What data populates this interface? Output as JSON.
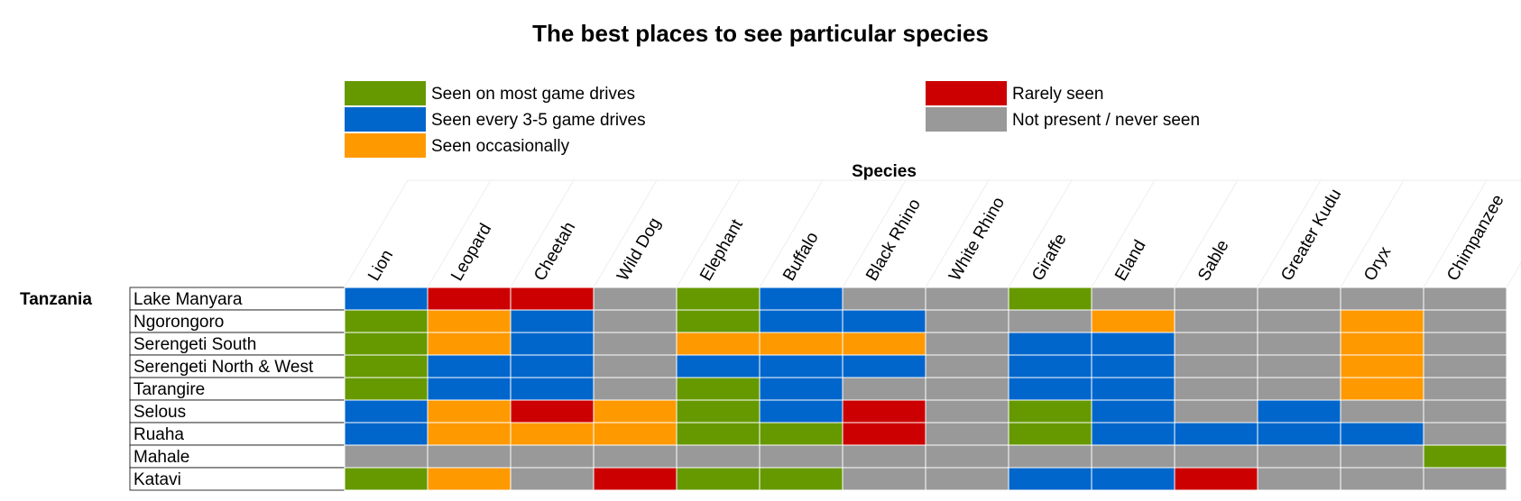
{
  "chart_data": {
    "type": "heatmap",
    "title": "The best places to see particular species",
    "xlabel": "Species",
    "group_label": "Tanzania",
    "categories": [
      "Lion",
      "Leopard",
      "Cheetah",
      "Wild Dog",
      "Elephant",
      "Buffalo",
      "Black Rhino",
      "White Rhino",
      "Giraffe",
      "Eland",
      "Sable",
      "Greater Kudu",
      "Oryx",
      "Chimpanzee"
    ],
    "rows": [
      "Lake Manyara",
      "Ngorongoro",
      "Serengeti South",
      "Serengeti North & West",
      "Tarangire",
      "Selous",
      "Ruaha",
      "Mahale",
      "Katavi"
    ],
    "legend": [
      {
        "key": "most",
        "label": "Seen on most game drives",
        "color": "#669900"
      },
      {
        "key": "every",
        "label": "Seen every 3-5 game drives",
        "color": "#0066cc"
      },
      {
        "key": "occasional",
        "label": "Seen occasionally",
        "color": "#ff9900"
      },
      {
        "key": "rare",
        "label": "Rarely seen",
        "color": "#cc0000"
      },
      {
        "key": "none",
        "label": "Not present / never seen",
        "color": "#999999"
      }
    ],
    "values": [
      [
        "every",
        "rare",
        "rare",
        "none",
        "most",
        "every",
        "none",
        "none",
        "most",
        "none",
        "none",
        "none",
        "none",
        "none"
      ],
      [
        "most",
        "occasional",
        "every",
        "none",
        "most",
        "every",
        "every",
        "none",
        "none",
        "occasional",
        "none",
        "none",
        "occasional",
        "none"
      ],
      [
        "most",
        "occasional",
        "every",
        "none",
        "occasional",
        "occasional",
        "occasional",
        "none",
        "every",
        "every",
        "none",
        "none",
        "occasional",
        "none"
      ],
      [
        "most",
        "every",
        "every",
        "none",
        "every",
        "every",
        "every",
        "none",
        "every",
        "every",
        "none",
        "none",
        "occasional",
        "none"
      ],
      [
        "most",
        "every",
        "every",
        "none",
        "most",
        "every",
        "none",
        "none",
        "every",
        "every",
        "none",
        "none",
        "occasional",
        "none"
      ],
      [
        "every",
        "occasional",
        "rare",
        "occasional",
        "most",
        "every",
        "rare",
        "none",
        "most",
        "every",
        "none",
        "every",
        "none",
        "none"
      ],
      [
        "every",
        "occasional",
        "occasional",
        "occasional",
        "most",
        "most",
        "rare",
        "none",
        "most",
        "every",
        "every",
        "every",
        "every",
        "none"
      ],
      [
        "none",
        "none",
        "none",
        "none",
        "none",
        "none",
        "none",
        "none",
        "none",
        "none",
        "none",
        "none",
        "none",
        "most"
      ],
      [
        "most",
        "occasional",
        "none",
        "rare",
        "most",
        "most",
        "none",
        "none",
        "every",
        "every",
        "rare",
        "none",
        "none",
        "none"
      ]
    ]
  }
}
